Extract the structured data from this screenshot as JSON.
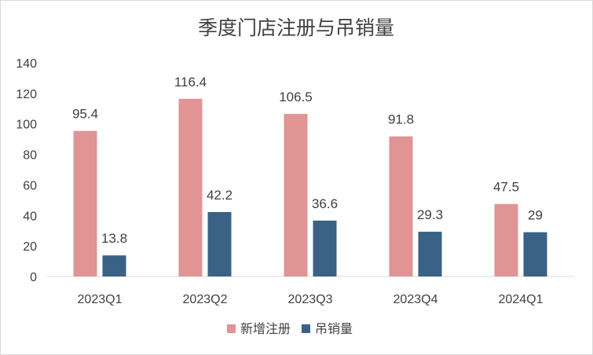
{
  "chart_data": {
    "type": "bar",
    "title": "季度门店注册与吊销量",
    "categories": [
      "2023Q1",
      "2023Q2",
      "2023Q3",
      "2023Q4",
      "2024Q1"
    ],
    "series": [
      {
        "name": "新增注册",
        "values": [
          95.4,
          116.4,
          106.5,
          91.8,
          47.5
        ],
        "color": "#e09494"
      },
      {
        "name": "吊销量",
        "values": [
          13.8,
          42.2,
          36.6,
          29.3,
          29
        ],
        "color": "#3a6186"
      }
    ],
    "ylim": [
      0,
      140
    ],
    "yticks": [
      "0",
      "20",
      "40",
      "60",
      "80",
      "100",
      "120",
      "140"
    ],
    "grid": false,
    "legend": "bottom",
    "data_labels": [
      [
        "95.4",
        "116.4",
        "106.5",
        "91.8",
        "47.5"
      ],
      [
        "13.8",
        "42.2",
        "36.6",
        "29.3",
        "29"
      ]
    ]
  }
}
